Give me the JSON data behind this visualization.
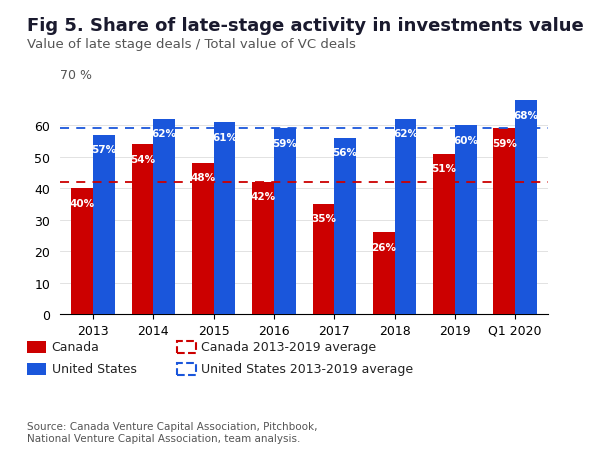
{
  "title": "Fig 5. Share of late-stage activity in investments value",
  "subtitle": "Value of late stage deals / Total value of VC deals",
  "source": "Source: Canada Venture Capital Association, Pitchbook,\nNational Venture Capital Association, team analysis.",
  "categories": [
    "2013",
    "2014",
    "2015",
    "2016",
    "2017",
    "2018",
    "2019",
    "Q1 2020"
  ],
  "canada_values": [
    40,
    54,
    48,
    42,
    35,
    26,
    51,
    59
  ],
  "us_values": [
    57,
    62,
    61,
    59,
    56,
    62,
    60,
    68
  ],
  "canada_avg": 42,
  "us_avg": 59,
  "canada_color": "#cc0000",
  "us_color": "#1a56db",
  "ylabel_text": "70 %",
  "ylim": [
    0,
    72
  ],
  "yticks": [
    0,
    10,
    20,
    30,
    40,
    50,
    60
  ],
  "background_color": "#ffffff",
  "title_fontsize": 13,
  "subtitle_fontsize": 9.5,
  "bar_width": 0.36,
  "label_fontsize": 7.5,
  "title_color": "#1a1a2e",
  "subtitle_color": "#555555",
  "source_fontsize": 7.5
}
